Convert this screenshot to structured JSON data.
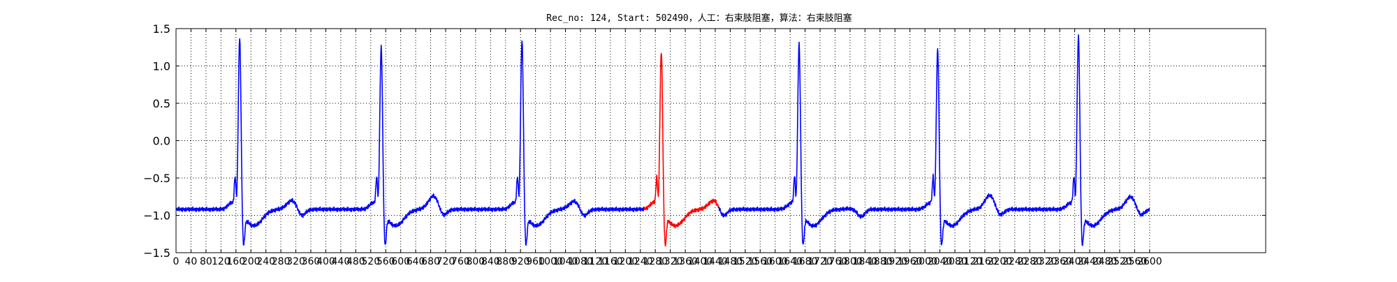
{
  "chart_data": {
    "type": "line",
    "title": "Rec_no: 124, Start: 502490，人工：右束肢阻塞，算法：右束肢阻塞",
    "xlabel": "",
    "ylabel": "",
    "xlim": [
      0,
      2910
    ],
    "ylim": [
      -1.5,
      1.5
    ],
    "grid": true,
    "y_ticks": [
      {
        "value": 1.5,
        "label": "1.5"
      },
      {
        "value": 1.0,
        "label": "1.0"
      },
      {
        "value": 0.5,
        "label": "0.5"
      },
      {
        "value": 0.0,
        "label": "0.0"
      },
      {
        "value": -0.5,
        "label": "−0.5"
      },
      {
        "value": -1.0,
        "label": "−1.0"
      },
      {
        "value": -1.5,
        "label": "−1.5"
      }
    ],
    "x_ticks": [
      0,
      40,
      80,
      120,
      160,
      200,
      240,
      280,
      320,
      360,
      400,
      440,
      480,
      520,
      560,
      600,
      640,
      680,
      720,
      760,
      800,
      840,
      880,
      920,
      960,
      1000,
      1040,
      1080,
      1120,
      1160,
      1200,
      1240,
      1280,
      1320,
      1360,
      1400,
      1440,
      1480,
      1520,
      1560,
      1600,
      1640,
      1680,
      1720,
      1760,
      1800,
      1840,
      1880,
      1920,
      1960,
      2000,
      2040,
      2080,
      2120,
      2160,
      2200,
      2240,
      2280,
      2320,
      2360,
      2400,
      2440,
      2480,
      2520,
      2560,
      2600
    ],
    "series_colors": {
      "normal": "#0000ff",
      "highlighted": "#ff0000"
    },
    "highlight_range": [
      1250,
      1450
    ],
    "baseline": -0.92,
    "beats": [
      {
        "r_peak_x": 170,
        "r_amp": 1.4,
        "t_amp": -0.82
      },
      {
        "r_peak_x": 548,
        "r_amp": 1.28,
        "t_amp": -0.76
      },
      {
        "r_peak_x": 924,
        "r_amp": 1.37,
        "t_amp": -0.83
      },
      {
        "r_peak_x": 1296,
        "r_amp": 1.22,
        "t_amp": -0.82
      },
      {
        "r_peak_x": 1664,
        "r_amp": 1.31,
        "t_amp": -0.93
      },
      {
        "r_peak_x": 2034,
        "r_amp": 1.24,
        "t_amp": -0.75
      },
      {
        "r_peak_x": 2410,
        "r_amp": 1.42,
        "t_amp": -0.77
      }
    ],
    "signal_end_x": 2600
  }
}
